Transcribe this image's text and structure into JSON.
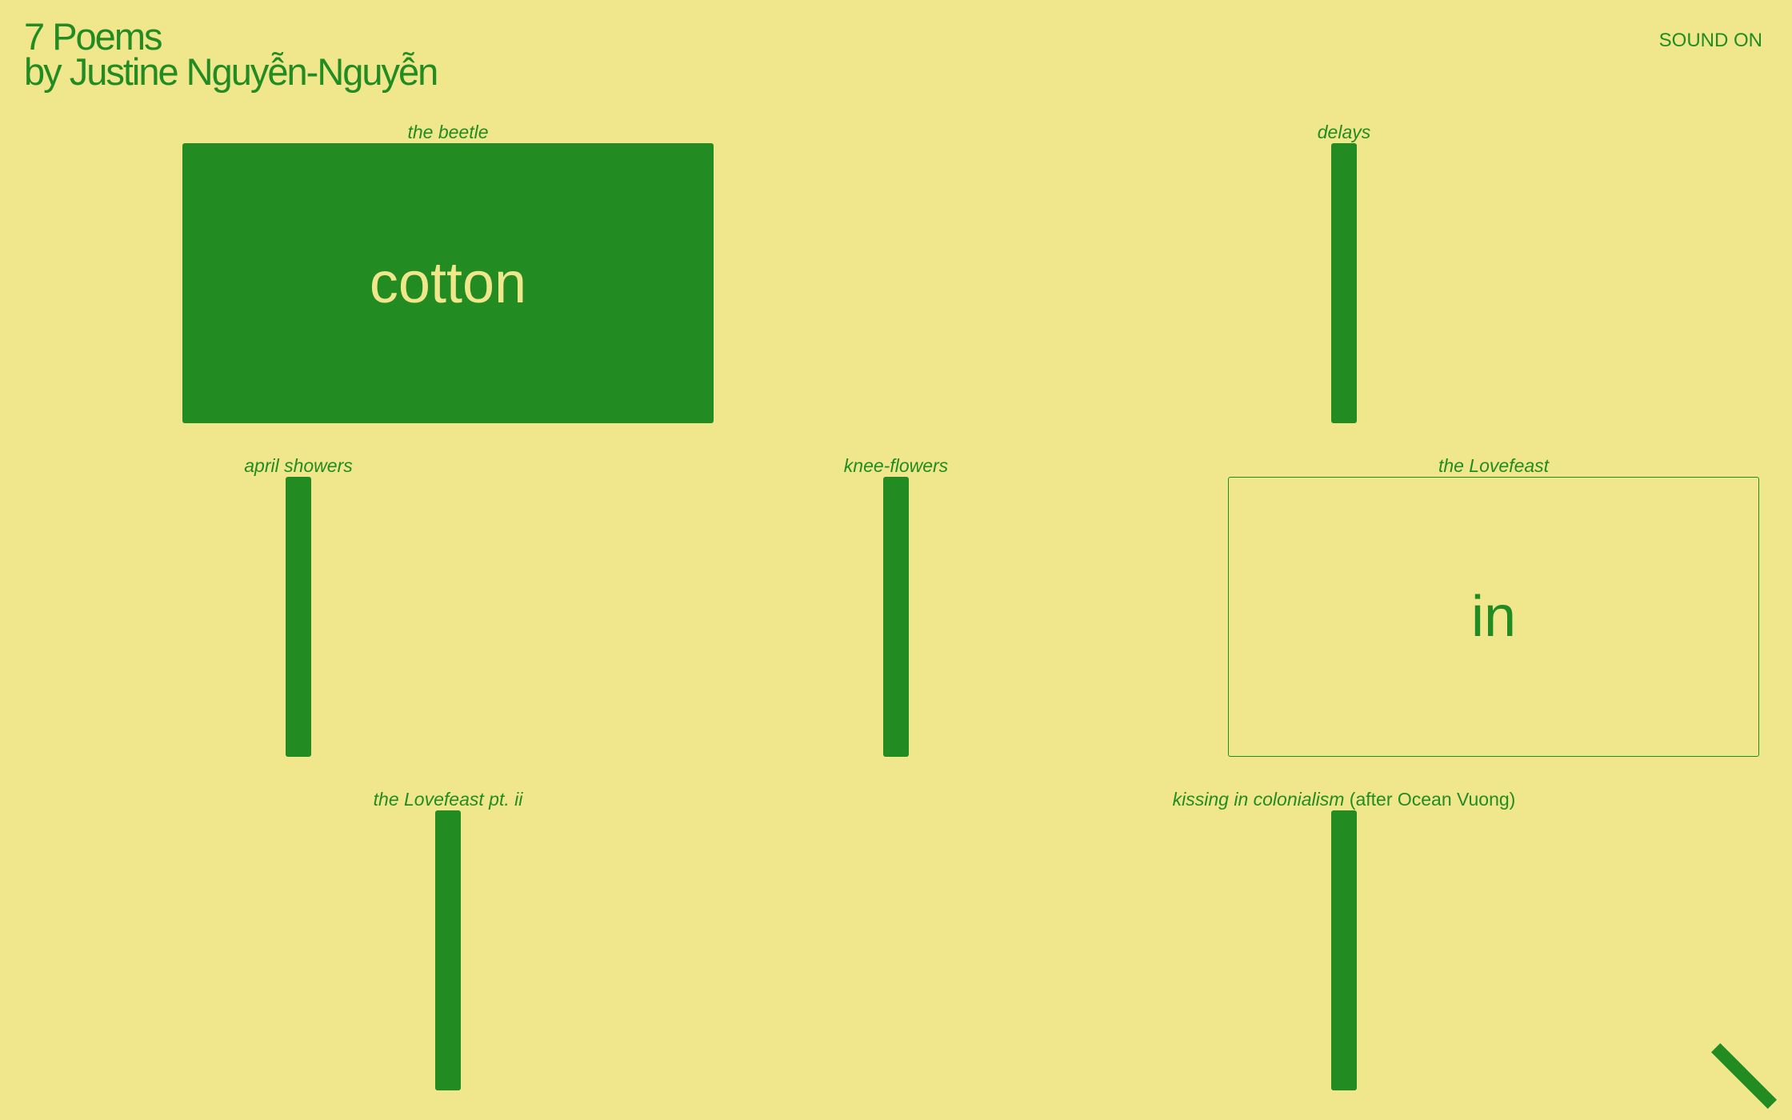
{
  "header": {
    "title_line1": "7 Poems",
    "title_line2": "by Justine Nguyễn-Nguyễn",
    "sound_label": "SOUND ON"
  },
  "poems": [
    {
      "title": "the beetle",
      "state": "open",
      "word": "cotton"
    },
    {
      "title": "delays",
      "state": "closed",
      "word": ""
    },
    {
      "title": "april showers",
      "state": "closed",
      "word": ""
    },
    {
      "title": "knee-flowers",
      "state": "closed",
      "word": ""
    },
    {
      "title": "the Lovefeast",
      "state": "outline",
      "word": "in"
    },
    {
      "title": "the Lovefeast pt. ii",
      "state": "closed",
      "word": ""
    },
    {
      "title": "kissing in colonialism",
      "title_suffix": " (after Ocean Vuong)",
      "state": "closed",
      "word": ""
    }
  ],
  "colors": {
    "background": "#f0e68c",
    "accent": "#228b22"
  },
  "icons": {
    "corner_mark": "diagonal-bar-icon"
  }
}
